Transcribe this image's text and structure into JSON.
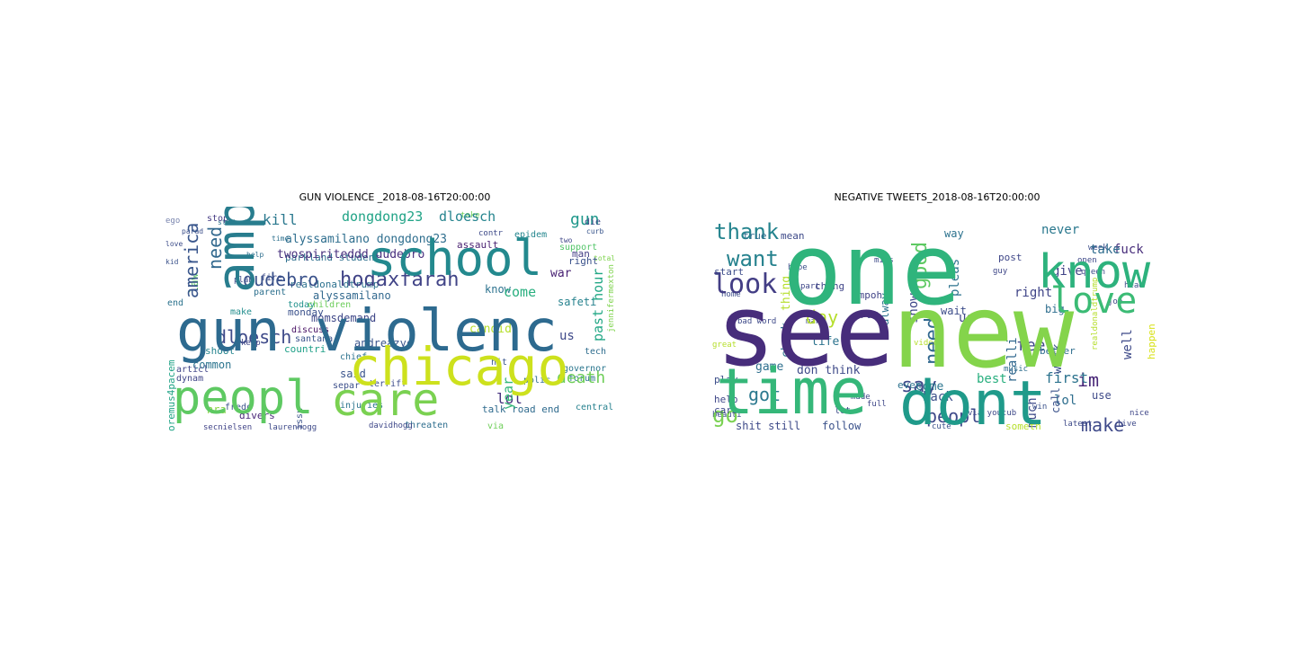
{
  "figure": {
    "background": "#ffffff",
    "panels": [
      {
        "title": "GUN VIOLENCE _2018-08-16T20:00:00",
        "words": [
          {
            "t": "gun violenc",
            "c": "#2d6a8f"
          },
          {
            "t": "school",
            "c": "#23898e"
          },
          {
            "t": "chicago",
            "c": "#cde11d"
          },
          {
            "t": "peopl",
            "c": "#5ec962"
          },
          {
            "t": "amp",
            "c": "#287d8e"
          },
          {
            "t": "care",
            "c": "#7ad151"
          },
          {
            "t": "hodaxfarah",
            "c": "#414487"
          },
          {
            "t": "dudebro",
            "c": "#3b528b"
          },
          {
            "t": "death",
            "c": "#6ece58"
          },
          {
            "t": "dloesch",
            "c": "#3e4a89"
          },
          {
            "t": "america",
            "c": "#39568c"
          },
          {
            "t": "need",
            "c": "#31688e"
          },
          {
            "t": "kill",
            "c": "#2a788e"
          },
          {
            "t": "dongdong23",
            "c": "#20a386"
          },
          {
            "t": "dloesch",
            "c": "#25848e"
          },
          {
            "t": "gun",
            "c": "#1f988b"
          },
          {
            "t": "alyssamilano dongdong23",
            "c": "#2e6e8e"
          },
          {
            "t": "twospiriteddd dudebro",
            "c": "#472f7d"
          },
          {
            "t": "past hour",
            "c": "#22a785"
          },
          {
            "t": "come",
            "c": "#29af7f"
          },
          {
            "t": "year",
            "c": "#35b779"
          },
          {
            "t": "us",
            "c": "#3e4989"
          },
          {
            "t": "lol",
            "c": "#46327e"
          },
          {
            "t": "candid",
            "c": "#b5de2b"
          },
          {
            "t": "know",
            "c": "#2c728e"
          },
          {
            "t": "assault",
            "c": "#481f70"
          },
          {
            "t": "epidem",
            "c": "#24868e"
          },
          {
            "t": "support",
            "c": "#52c569"
          },
          {
            "t": "right",
            "c": "#3b528b"
          },
          {
            "t": "man",
            "c": "#433e85"
          },
          {
            "t": "war",
            "c": "#482173"
          },
          {
            "t": "safeti",
            "c": "#26828e"
          },
          {
            "t": "talk road end",
            "c": "#2f6b8e"
          },
          {
            "t": "parkland student",
            "c": "#2e6f8e"
          },
          {
            "t": "realdonaldtrump",
            "c": "#2c718e"
          },
          {
            "t": "alyssamilano",
            "c": "#31688e"
          },
          {
            "t": "momsdemand",
            "c": "#3f4788"
          },
          {
            "t": "shoot",
            "c": "#25848e"
          },
          {
            "t": "said",
            "c": "#3a548c"
          },
          {
            "t": "common",
            "c": "#2b748e"
          },
          {
            "t": "nra",
            "c": "#8bd646"
          },
          {
            "t": "divers",
            "c": "#482677"
          },
          {
            "t": "countri",
            "c": "#1fa088"
          },
          {
            "t": "parent",
            "c": "#2d708e"
          },
          {
            "t": "make",
            "c": "#228d8d"
          },
          {
            "t": "today",
            "c": "#21918c"
          },
          {
            "t": "monday",
            "c": "#3b518b"
          },
          {
            "t": "santana",
            "c": "#3a538b"
          },
          {
            "t": "discuss",
            "c": "#471063"
          },
          {
            "t": "children",
            "c": "#6ccd5a"
          },
          {
            "t": "law",
            "c": "#5ec962"
          },
          {
            "t": "end",
            "c": "#2c738e"
          },
          {
            "t": "fire",
            "c": "#3e4c8a"
          },
          {
            "t": "chief",
            "c": "#2c728e"
          },
          {
            "t": "separ",
            "c": "#3c4f8a"
          },
          {
            "t": "injuries",
            "c": "#2b758e"
          },
          {
            "t": "issu",
            "c": "#3b528b"
          },
          {
            "t": "threaten",
            "c": "#2e6e8e"
          },
          {
            "t": "central",
            "c": "#26818e"
          },
          {
            "t": "governor",
            "c": "#2a768e"
          },
          {
            "t": "forum",
            "c": "#2c728e"
          },
          {
            "t": "via",
            "c": "#6ece58"
          },
          {
            "t": "oremus4pacem",
            "c": "#20a386"
          },
          {
            "t": "jennifermexton",
            "c": "#7fd34e"
          },
          {
            "t": "laurenhogg",
            "c": "#3e4a89"
          },
          {
            "t": "davidhogg",
            "c": "#3f4889"
          },
          {
            "t": "secnielsen",
            "c": "#414487"
          },
          {
            "t": "fredo",
            "c": "#3b528b"
          },
          {
            "t": "articl",
            "c": "#404588"
          },
          {
            "t": "dynam",
            "c": "#404688"
          },
          {
            "t": "stop",
            "c": "#443a83"
          },
          {
            "t": "die",
            "c": "#3e4989"
          },
          {
            "t": "plan",
            "c": "#3e4a89"
          },
          {
            "t": "keep",
            "c": "#3f4788"
          },
          {
            "t": "andreazyc",
            "c": "#3a548c"
          },
          {
            "t": "terriff",
            "c": "#3d4d8a"
          },
          {
            "t": "polic",
            "c": "#2f6c8e"
          },
          {
            "t": "tech",
            "c": "#2e6d8e"
          },
          {
            "t": "hit",
            "c": "#39568c"
          },
          {
            "t": "take",
            "c": "#6ece58"
          },
          {
            "t": "ego",
            "c": "#3d4e8a"
          },
          {
            "t": "student",
            "c": "#2c728e"
          },
          {
            "t": "parad",
            "c": "#3c4f8a"
          },
          {
            "t": "curb",
            "c": "#39558c"
          },
          {
            "t": "contr",
            "c": "#3e4a89"
          },
          {
            "t": "time",
            "c": "#2d708e"
          },
          {
            "t": "love",
            "c": "#3d4d8a"
          },
          {
            "t": "two",
            "c": "#3f4788"
          },
          {
            "t": "help",
            "c": "#2e6e8e"
          },
          {
            "t": "kid",
            "c": "#3b528b"
          },
          {
            "t": "total",
            "c": "#7fd34e"
          },
          {
            "t": "live",
            "c": "#2e6f8e"
          }
        ]
      },
      {
        "title": "NEGATIVE TWEETS_2018-08-16T20:00:00",
        "words": [
          {
            "t": "one",
            "c": "#2fb47c"
          },
          {
            "t": "see",
            "c": "#472d7b"
          },
          {
            "t": "new",
            "c": "#84d44b"
          },
          {
            "t": "time",
            "c": "#35b779"
          },
          {
            "t": "dont",
            "c": "#1f9a8a"
          },
          {
            "t": "know",
            "c": "#2db27d"
          },
          {
            "t": "love",
            "c": "#3bbb75"
          },
          {
            "t": "thank",
            "c": "#25848e"
          },
          {
            "t": "want",
            "c": "#26828e"
          },
          {
            "t": "look",
            "c": "#433e85"
          },
          {
            "t": "say",
            "c": "#3e4989"
          },
          {
            "t": "good",
            "c": "#5ec962"
          },
          {
            "t": "need",
            "c": "#31688e"
          },
          {
            "t": "peopl",
            "c": "#3e4989"
          },
          {
            "t": "got",
            "c": "#2a788e"
          },
          {
            "t": "go",
            "c": "#7ad151"
          },
          {
            "t": "im",
            "c": "#482677"
          },
          {
            "t": "make",
            "c": "#3e4989"
          },
          {
            "t": "today",
            "c": "#6ece58"
          },
          {
            "t": "feel",
            "c": "#3f4788"
          },
          {
            "t": "realli",
            "c": "#31688e"
          },
          {
            "t": "day",
            "c": "#b5de2b"
          },
          {
            "t": "never",
            "c": "#2a788e"
          },
          {
            "t": "fuck",
            "c": "#472d7b"
          },
          {
            "t": "take",
            "c": "#2f6c8e"
          },
          {
            "t": "show",
            "c": "#3f4788"
          },
          {
            "t": "pleas",
            "c": "#2c728e"
          },
          {
            "t": "first",
            "c": "#2c738e"
          },
          {
            "t": "work",
            "c": "#3b528b"
          },
          {
            "t": "well",
            "c": "#3e4a89"
          },
          {
            "t": "give",
            "c": "#414487"
          },
          {
            "t": "right",
            "c": "#404588"
          },
          {
            "t": "much",
            "c": "#3e4a89"
          },
          {
            "t": "lol",
            "c": "#2e6e8e"
          },
          {
            "t": "best",
            "c": "#29af7f"
          },
          {
            "t": "back",
            "c": "#3c4f8a"
          },
          {
            "t": "follow",
            "c": "#3b528b"
          },
          {
            "t": "shit still",
            "c": "#3e4a89"
          },
          {
            "t": "check",
            "c": "#2b748e"
          },
          {
            "t": "thing",
            "c": "#b5de2b"
          },
          {
            "t": "game",
            "c": "#2e6f8e"
          },
          {
            "t": "don think",
            "c": "#3e4a89"
          },
          {
            "t": "life",
            "c": "#2c738e"
          },
          {
            "t": "come",
            "c": "#2b758e"
          },
          {
            "t": "run",
            "c": "#3e4989"
          },
          {
            "t": "alway",
            "c": "#2c728e"
          },
          {
            "t": "way",
            "c": "#2c728e"
          },
          {
            "t": "us",
            "c": "#404688"
          },
          {
            "t": "wait",
            "c": "#3d4d8a"
          },
          {
            "t": "call",
            "c": "#3b528b"
          },
          {
            "t": "use",
            "c": "#3e4a89"
          },
          {
            "t": "big",
            "c": "#2e6e8e"
          },
          {
            "t": "even",
            "c": "#2c728e"
          },
          {
            "t": "play",
            "c": "#3d4e8a"
          },
          {
            "t": "care",
            "c": "#3e4989"
          },
          {
            "t": "help",
            "c": "#3f4788"
          },
          {
            "t": "true",
            "c": "#2f6c8e"
          },
          {
            "t": "mean",
            "c": "#3e4a89"
          },
          {
            "t": "start",
            "c": "#3d4d8a"
          },
          {
            "t": "post",
            "c": "#3f4788"
          },
          {
            "t": "chang",
            "c": "#404588"
          },
          {
            "t": "ampoh",
            "c": "#414487"
          },
          {
            "t": "someth",
            "c": "#b5de2b"
          },
          {
            "t": "better",
            "c": "#2e6e8e"
          },
          {
            "t": "happen",
            "c": "#d8e219"
          },
          {
            "t": "realdonaldtrump",
            "c": "#b5de2b"
          },
          {
            "t": "lot",
            "c": "#3e4989"
          },
          {
            "t": "full",
            "c": "#3f4788"
          },
          {
            "t": "man",
            "c": "#3d4d8a"
          },
          {
            "t": "bad word",
            "c": "#3e4a89"
          },
          {
            "t": "part",
            "c": "#3f4788"
          },
          {
            "t": "hope",
            "c": "#3b528b"
          },
          {
            "t": "home",
            "c": "#3d4e8a"
          },
          {
            "t": "miss",
            "c": "#3e4a89"
          },
          {
            "t": "guy",
            "c": "#3f4788"
          },
          {
            "t": "open",
            "c": "#3e4989"
          },
          {
            "t": "week",
            "c": "#3d4d8a"
          },
          {
            "t": "queen",
            "c": "#3e4a89"
          },
          {
            "t": "head",
            "c": "#3d4d8a"
          },
          {
            "t": "job",
            "c": "#404588"
          },
          {
            "t": "cute",
            "c": "#3b528b"
          },
          {
            "t": "latest",
            "c": "#3e4a89"
          },
          {
            "t": "live",
            "c": "#3e4989"
          },
          {
            "t": "nice",
            "c": "#3f4788"
          },
          {
            "t": "made",
            "c": "#3e4a89"
          },
          {
            "t": "beauti",
            "c": "#3d4d8a"
          },
          {
            "t": "great",
            "c": "#b5de2b"
          },
          {
            "t": "video",
            "c": "#b5de2b"
          },
          {
            "t": "via youtub",
            "c": "#3e4989"
          },
          {
            "t": "win",
            "c": "#3b528b"
          },
          {
            "t": "music",
            "c": "#2e6e8e"
          }
        ]
      }
    ]
  }
}
